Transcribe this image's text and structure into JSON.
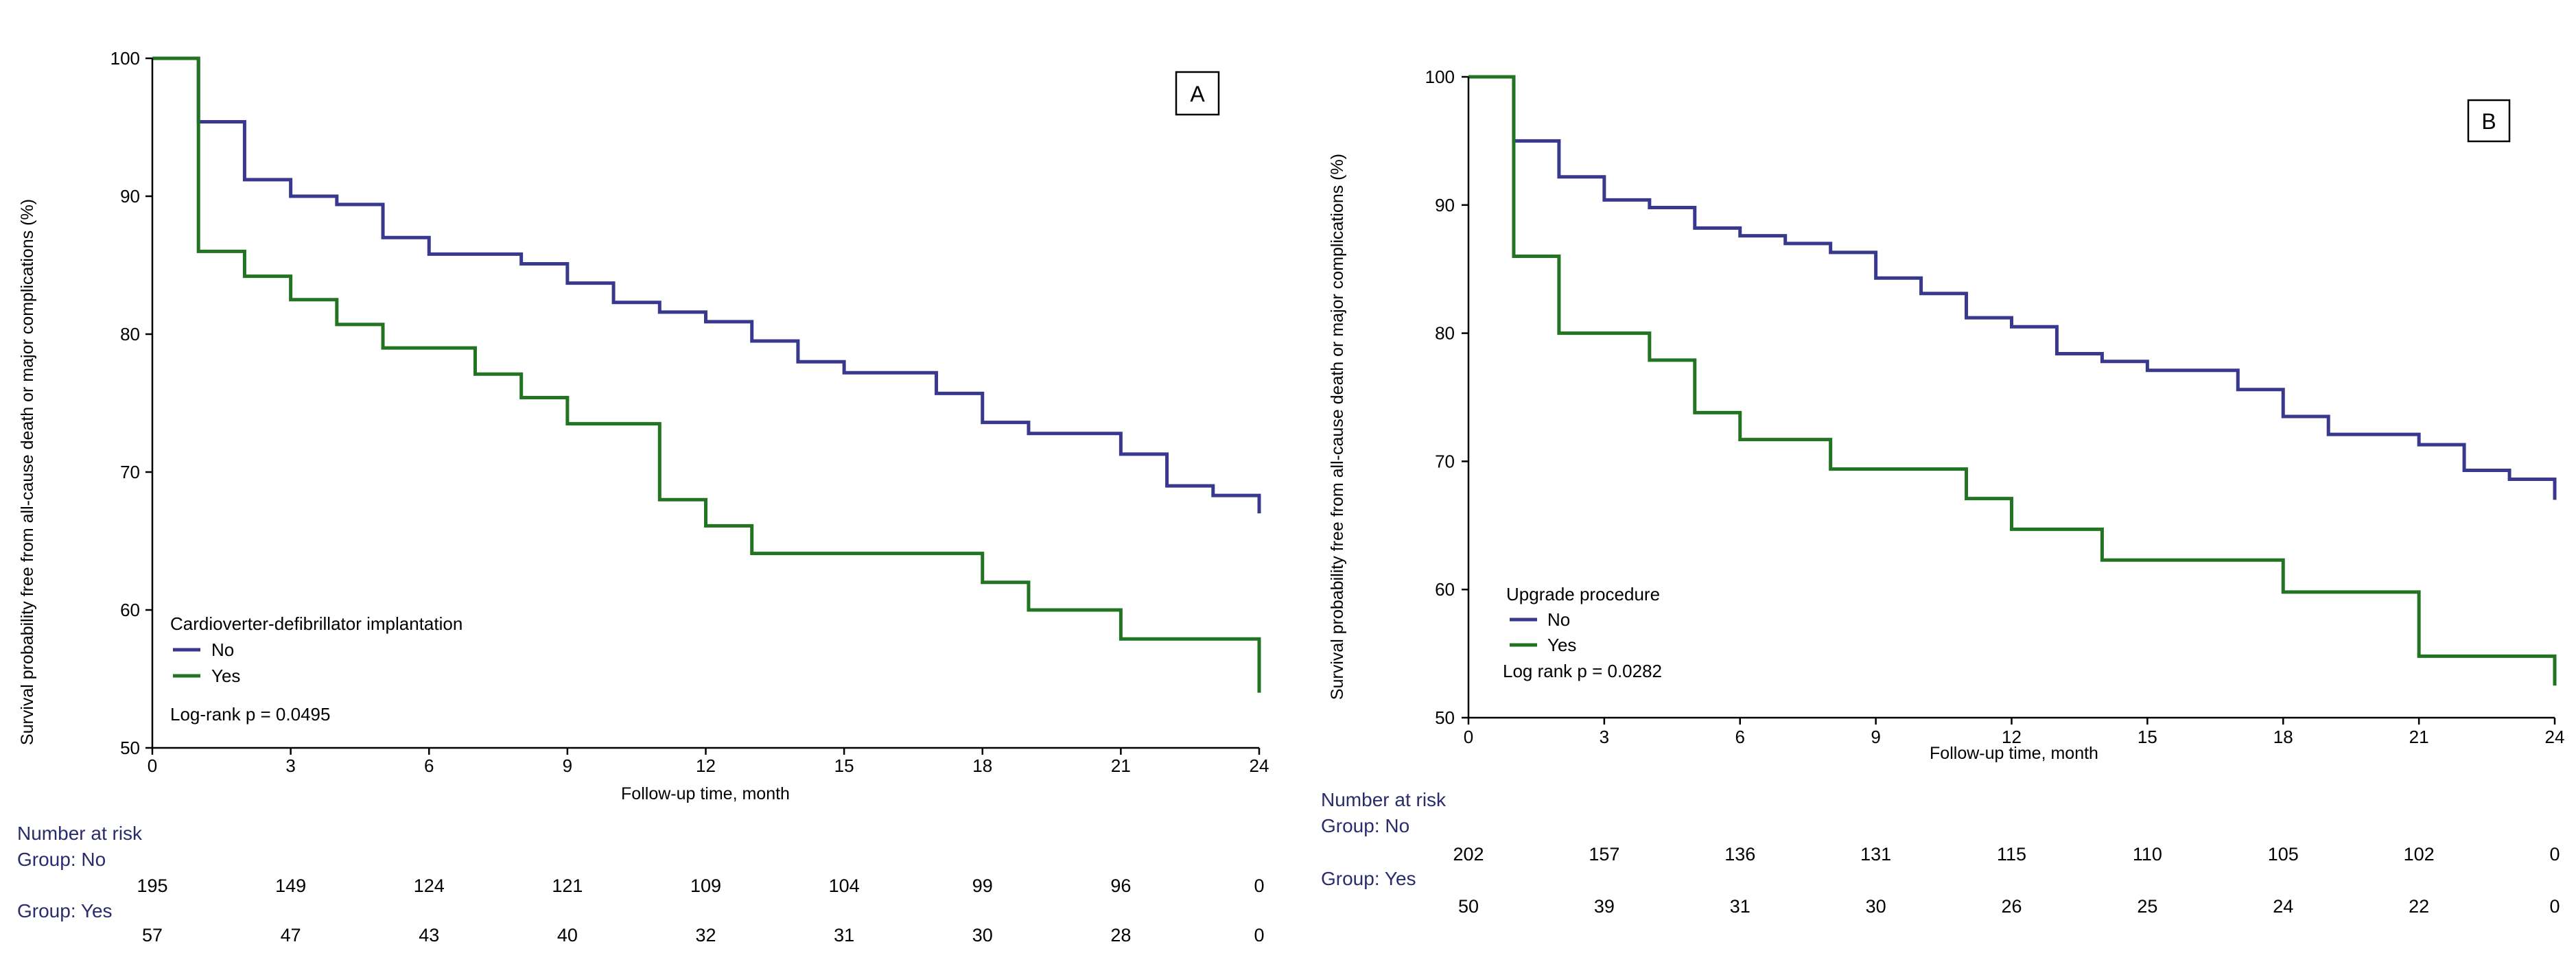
{
  "colors": {
    "no": "#38388f",
    "yes": "#227322",
    "risk_header": "#2b2b70"
  },
  "chart_data": [
    {
      "type": "line",
      "panel": "A",
      "xlabel": "Follow-up time, month",
      "ylabel": "Survival probability free from all-cause death or major complications (%)",
      "xlim": [
        0,
        24
      ],
      "ylim": [
        50,
        100
      ],
      "xticks": [
        0,
        3,
        6,
        9,
        12,
        15,
        18,
        21,
        24
      ],
      "yticks": [
        50,
        60,
        70,
        80,
        90,
        100
      ],
      "legend_title": "Cardioverter-defibrillator implantation",
      "series": [
        {
          "name": "No",
          "x": [
            0,
            1,
            2,
            3,
            4,
            5,
            6,
            8,
            9,
            10,
            11,
            12,
            13,
            14,
            15,
            17,
            18,
            19,
            21,
            22,
            23,
            24
          ],
          "y": [
            100,
            95.4,
            91.2,
            90.0,
            89.4,
            87.0,
            85.8,
            85.1,
            83.7,
            82.3,
            81.6,
            80.9,
            79.5,
            78.0,
            77.2,
            75.7,
            73.6,
            72.8,
            71.3,
            69.0,
            68.3,
            67.0
          ]
        },
        {
          "name": "Yes",
          "x": [
            0,
            1,
            2,
            3,
            4,
            5,
            7,
            8,
            9,
            11,
            12,
            13,
            18,
            19,
            21,
            24
          ],
          "y": [
            100,
            86.0,
            84.2,
            82.5,
            80.7,
            79.0,
            77.1,
            75.4,
            73.5,
            68.0,
            66.1,
            64.1,
            62.0,
            60.0,
            57.9,
            54.0
          ]
        }
      ],
      "annotation": "Log-rank p = 0.0495",
      "risk_table": {
        "title": "Number at risk",
        "times": [
          0,
          3,
          6,
          9,
          12,
          15,
          18,
          21,
          24
        ],
        "groups": [
          {
            "label": "Group: No",
            "values": [
              "195",
              "149",
              "124",
              "121",
              "109",
              "104",
              "99",
              "96",
              "0"
            ]
          },
          {
            "label": "Group: Yes",
            "values": [
              "57",
              "47",
              "43",
              "40",
              "32",
              "31",
              "30",
              "28",
              "0"
            ]
          }
        ]
      }
    },
    {
      "type": "line",
      "panel": "B",
      "xlabel": "Follow-up time, month",
      "ylabel": "Survival probability free from all-cause death or major complications (%)",
      "xlim": [
        0,
        24
      ],
      "ylim": [
        50,
        100
      ],
      "xticks": [
        0,
        3,
        6,
        9,
        12,
        15,
        18,
        21,
        24
      ],
      "yticks": [
        50,
        60,
        70,
        80,
        90,
        100
      ],
      "legend_title": "Upgrade procedure",
      "series": [
        {
          "name": "No",
          "x": [
            0,
            1,
            2,
            3,
            4,
            5,
            6,
            7,
            8,
            9,
            10,
            11,
            12,
            13,
            14,
            15,
            17,
            18,
            19,
            21,
            22,
            23,
            24
          ],
          "y": [
            100,
            95.0,
            92.2,
            90.4,
            89.8,
            88.2,
            87.6,
            87.0,
            86.3,
            84.3,
            83.1,
            81.2,
            80.5,
            78.4,
            77.8,
            77.1,
            75.6,
            73.5,
            72.1,
            71.3,
            69.3,
            68.6,
            67.0
          ]
        },
        {
          "name": "Yes",
          "x": [
            0,
            1,
            2,
            4,
            5,
            6,
            8,
            11,
            12,
            14,
            18,
            21,
            24
          ],
          "y": [
            100,
            86.0,
            80.0,
            77.9,
            73.8,
            71.7,
            69.4,
            67.1,
            64.7,
            62.3,
            59.8,
            54.8,
            52.5
          ]
        }
      ],
      "annotation": "Log rank p = 0.0282",
      "risk_table": {
        "title": "Number at risk",
        "times": [
          0,
          3,
          6,
          9,
          12,
          15,
          18,
          21,
          24
        ],
        "groups": [
          {
            "label": "Group: No",
            "values": [
              "202",
              "157",
              "136",
              "131",
              "115",
              "110",
              "105",
              "102",
              "0"
            ]
          },
          {
            "label": "Group: Yes",
            "values": [
              "50",
              "39",
              "31",
              "30",
              "26",
              "25",
              "24",
              "22",
              "0"
            ]
          }
        ]
      }
    }
  ]
}
